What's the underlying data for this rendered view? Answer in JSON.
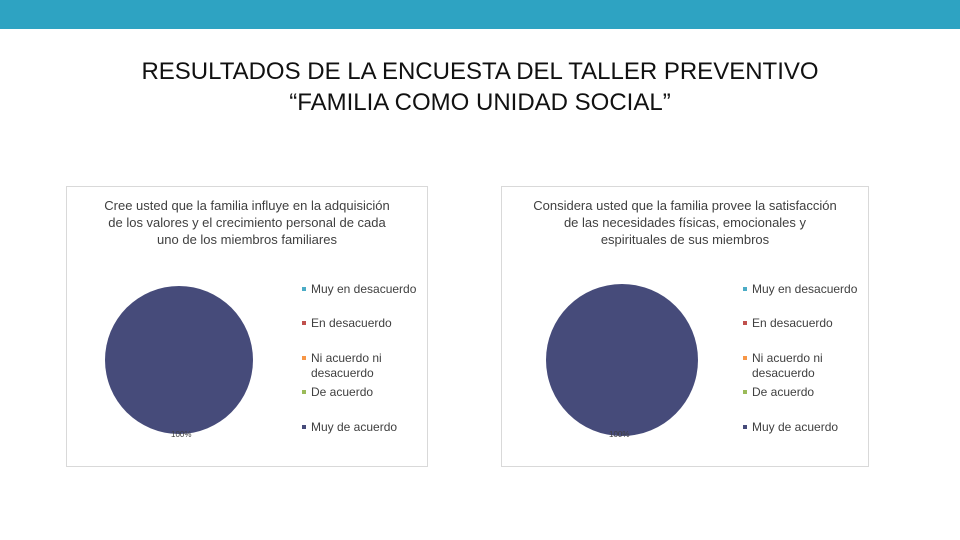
{
  "page": {
    "title": "RESULTADOS DE LA ENCUESTA DEL TALLER PREVENTIVO “FAMILIA COMO UNIDAD SOCIAL”",
    "accent_color": "#2ea3c2"
  },
  "chart_data": [
    {
      "type": "pie",
      "title": "Cree usted que la familia influye en la adquisición de los valores y el crecimiento personal de cada uno de los miembros familiares",
      "categories": [
        "Muy en desacuerdo",
        "En desacuerdo",
        "Ni acuerdo ni desacuerdo",
        "De acuerdo",
        "Muy de acuerdo"
      ],
      "values": [
        0,
        0,
        0,
        0,
        100
      ],
      "colors": [
        "#4bacc6",
        "#c0504d",
        "#f79646",
        "#9bbb59",
        "#464b7a"
      ],
      "data_labels": [
        "100%"
      ],
      "legend_position": "right"
    },
    {
      "type": "pie",
      "title": "Considera usted que la familia provee la satisfacción de las necesidades físicas, emocionales y espirituales de sus miembros",
      "categories": [
        "Muy en desacuerdo",
        "En desacuerdo",
        "Ni acuerdo ni desacuerdo",
        "De acuerdo",
        "Muy de acuerdo"
      ],
      "values": [
        0,
        0,
        0,
        0,
        100
      ],
      "colors": [
        "#4bacc6",
        "#c0504d",
        "#f79646",
        "#9bbb59",
        "#464b7a"
      ],
      "data_labels": [
        "100%"
      ],
      "legend_position": "right"
    }
  ]
}
